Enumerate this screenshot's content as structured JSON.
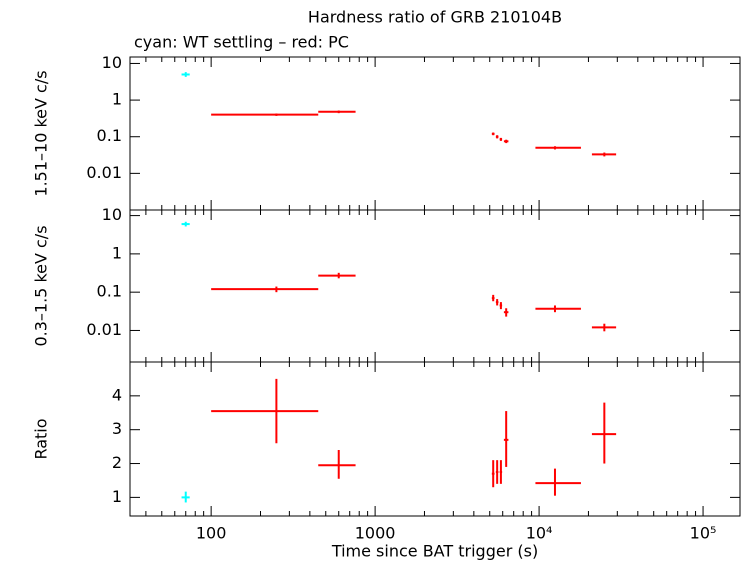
{
  "chart_data": [
    {
      "type": "errorbar",
      "title": "Hardness ratio of GRB 210104B",
      "subtitle": "cyan: WT settling – red: PC",
      "y_label": "1.51–10 keV c/s",
      "xlog": true,
      "ylog": true,
      "xlim": [
        32,
        168000
      ],
      "ylim": [
        0.001,
        15
      ],
      "yticks": [
        10,
        1,
        0.1,
        0.01
      ],
      "series": [
        {
          "color": "#00ffff",
          "x": [
            70
          ],
          "x_low": [
            66
          ],
          "x_high": [
            74
          ],
          "values": [
            5
          ],
          "y_low": [
            4.3
          ],
          "y_high": [
            5.8
          ]
        },
        {
          "color": "#ff0000",
          "x": [
            250,
            600,
            5250,
            5550,
            5850,
            6300,
            12500,
            25000
          ],
          "x_low": [
            100,
            450,
            5150,
            5450,
            5750,
            6100,
            9500,
            21000
          ],
          "x_high": [
            450,
            760,
            5350,
            5650,
            5950,
            6500,
            18000,
            29500
          ],
          "values": [
            0.4,
            0.48,
            0.12,
            0.1,
            0.085,
            0.075,
            0.05,
            0.033
          ],
          "y_low": [
            0.37,
            0.44,
            0.11,
            0.09,
            0.077,
            0.067,
            0.045,
            0.029
          ],
          "y_high": [
            0.43,
            0.52,
            0.13,
            0.11,
            0.093,
            0.083,
            0.055,
            0.037
          ]
        }
      ]
    },
    {
      "type": "errorbar",
      "y_label": "0.3–1.5 keV c/s",
      "xlog": true,
      "ylog": true,
      "xlim": [
        32,
        168000
      ],
      "ylim": [
        0.0015,
        14
      ],
      "yticks": [
        10,
        1,
        0.1,
        0.01
      ],
      "series": [
        {
          "color": "#00ffff",
          "x": [
            70
          ],
          "x_low": [
            66
          ],
          "x_high": [
            74
          ],
          "values": [
            6
          ],
          "y_low": [
            5.2
          ],
          "y_high": [
            6.9
          ]
        },
        {
          "color": "#ff0000",
          "x": [
            250,
            600,
            5250,
            5550,
            5850,
            6300,
            12500,
            25000
          ],
          "x_low": [
            100,
            450,
            5150,
            5450,
            5750,
            6100,
            9500,
            21000
          ],
          "x_high": [
            450,
            760,
            5350,
            5650,
            5950,
            6500,
            18000,
            29500
          ],
          "values": [
            0.12,
            0.27,
            0.07,
            0.055,
            0.045,
            0.03,
            0.037,
            0.012
          ],
          "y_low": [
            0.1,
            0.23,
            0.058,
            0.045,
            0.036,
            0.023,
            0.03,
            0.0095
          ],
          "y_high": [
            0.14,
            0.32,
            0.085,
            0.066,
            0.055,
            0.038,
            0.045,
            0.015
          ]
        }
      ]
    },
    {
      "type": "errorbar",
      "y_label": "Ratio",
      "x_label": "Time since BAT trigger (s)",
      "xlog": true,
      "ylog": false,
      "xlim": [
        32,
        168000
      ],
      "ylim": [
        0.45,
        5
      ],
      "yticks": [
        1,
        2,
        3,
        4
      ],
      "xticks": [
        100,
        1000,
        {
          "value": 10000,
          "label": "10⁴"
        },
        {
          "value": 100000,
          "label": "10⁵"
        }
      ],
      "xminorticks": [
        40,
        50,
        60,
        70,
        80,
        90,
        200,
        300,
        400,
        500,
        600,
        700,
        800,
        900,
        2000,
        3000,
        4000,
        5000,
        6000,
        7000,
        8000,
        9000,
        20000,
        30000,
        40000,
        50000,
        60000,
        70000,
        80000,
        90000
      ],
      "series": [
        {
          "color": "#00ffff",
          "x": [
            70
          ],
          "x_low": [
            66
          ],
          "x_high": [
            74
          ],
          "values": [
            1.0
          ],
          "y_low": [
            0.85
          ],
          "y_high": [
            1.17
          ]
        },
        {
          "color": "#ff0000",
          "x": [
            250,
            600,
            5250,
            5550,
            5850,
            6300,
            12500,
            25000
          ],
          "x_low": [
            100,
            450,
            5150,
            5450,
            5750,
            6100,
            9500,
            21000
          ],
          "x_high": [
            450,
            760,
            5350,
            5650,
            5950,
            6500,
            18000,
            29500
          ],
          "values": [
            3.55,
            1.95,
            1.7,
            1.75,
            1.75,
            2.7,
            1.42,
            2.87
          ],
          "y_low": [
            2.6,
            1.55,
            1.3,
            1.4,
            1.4,
            1.9,
            1.05,
            2.0
          ],
          "y_high": [
            4.5,
            2.4,
            2.1,
            2.1,
            2.1,
            3.55,
            1.85,
            3.8
          ]
        }
      ]
    }
  ]
}
